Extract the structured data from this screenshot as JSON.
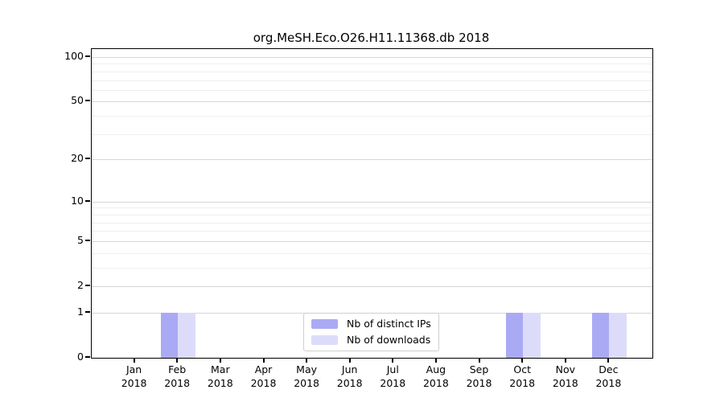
{
  "title": "org.MeSH.Eco.O26.H11.11368.db 2018",
  "chart_data": {
    "type": "bar",
    "title": "org.MeSH.Eco.O26.H11.11368.db 2018",
    "categories": [
      {
        "month": "Jan",
        "year": "2018"
      },
      {
        "month": "Feb",
        "year": "2018"
      },
      {
        "month": "Mar",
        "year": "2018"
      },
      {
        "month": "Apr",
        "year": "2018"
      },
      {
        "month": "May",
        "year": "2018"
      },
      {
        "month": "Jun",
        "year": "2018"
      },
      {
        "month": "Jul",
        "year": "2018"
      },
      {
        "month": "Aug",
        "year": "2018"
      },
      {
        "month": "Sep",
        "year": "2018"
      },
      {
        "month": "Oct",
        "year": "2018"
      },
      {
        "month": "Nov",
        "year": "2018"
      },
      {
        "month": "Dec",
        "year": "2018"
      }
    ],
    "series": [
      {
        "name": "Nb of distinct IPs",
        "color": "#aaaaf4",
        "values": [
          0,
          1,
          0,
          0,
          0,
          0,
          0,
          0,
          0,
          1,
          0,
          1
        ]
      },
      {
        "name": "Nb of downloads",
        "color": "#dcdcfa",
        "values": [
          0,
          1,
          0,
          0,
          0,
          0,
          0,
          0,
          0,
          1,
          0,
          1
        ]
      }
    ],
    "y_axis": {
      "scale": "log1p",
      "major_ticks": [
        0,
        1,
        2,
        5,
        10,
        20,
        50,
        100
      ],
      "minor_gridlines": [
        3,
        4,
        6,
        7,
        8,
        9,
        30,
        40,
        60,
        70,
        80,
        90
      ],
      "ylim": [
        0,
        113
      ]
    },
    "xlabel": "",
    "ylabel": "",
    "grid": true,
    "legend_position": "lower center"
  },
  "colors": {
    "major_grid": "#d6d6d6",
    "minor_grid": "#efefef",
    "spine": "#000000",
    "legend_border": "#cfcfcf"
  }
}
